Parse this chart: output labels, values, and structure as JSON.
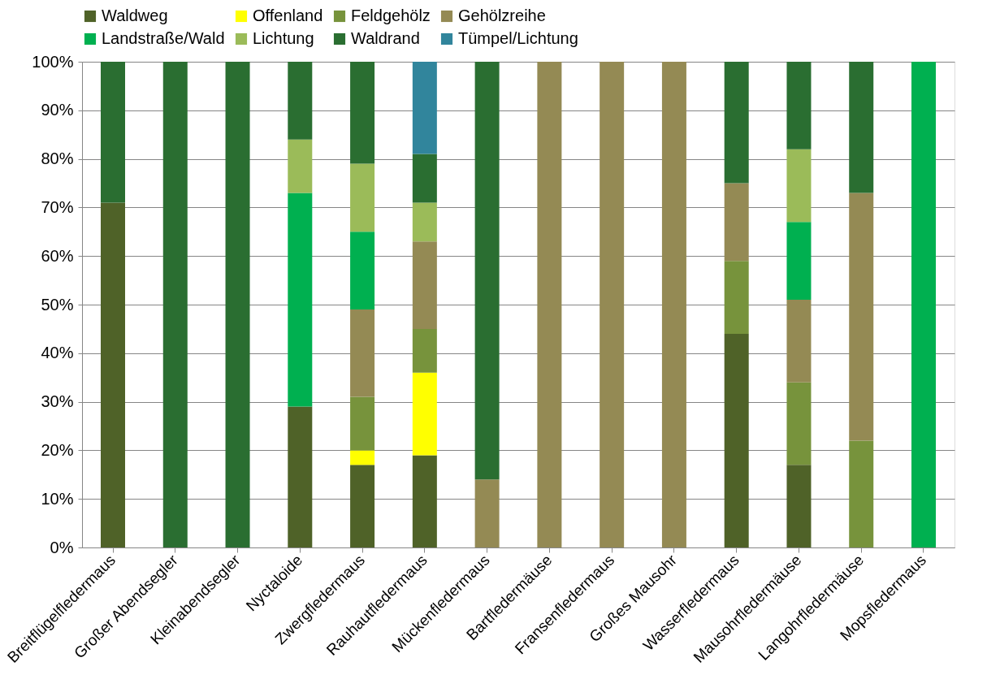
{
  "chart_data": {
    "type": "bar",
    "stacked": true,
    "categories": [
      "Breitflügelfledermaus",
      "Großer Abendsegler",
      "Kleinabendsegler",
      "Nyctaloide",
      "Zwergfledermaus",
      "Rauhautfledermaus",
      "Mückenfledermaus",
      "Bartfledermäuse",
      "Fransenfledermaus",
      "Großes Mausohr",
      "Wasserfledermaus",
      "Mausohrfledermäuse",
      "Langohrfledermäuse",
      "Mopsfledermaus"
    ],
    "series": [
      {
        "name": "Waldweg",
        "color": "#4f6228",
        "values": [
          71,
          null,
          null,
          29,
          17,
          19,
          null,
          null,
          null,
          null,
          44,
          17,
          null,
          null
        ]
      },
      {
        "name": "Offenland",
        "color": "#ffff00",
        "values": [
          null,
          null,
          null,
          null,
          3,
          17,
          null,
          null,
          null,
          null,
          null,
          null,
          null,
          null
        ]
      },
      {
        "name": "Feldgehölz",
        "color": "#77933c",
        "values": [
          null,
          null,
          null,
          null,
          11,
          9,
          null,
          null,
          null,
          null,
          15,
          17,
          22,
          null
        ]
      },
      {
        "name": "Gehölzreihe",
        "color": "#948a54",
        "values": [
          null,
          null,
          null,
          null,
          18,
          18,
          14,
          100,
          100,
          100,
          16,
          17,
          51,
          null
        ]
      },
      {
        "name": "Landstraße/Wald",
        "color": "#00b050",
        "values": [
          null,
          null,
          null,
          44,
          16,
          null,
          null,
          null,
          null,
          null,
          null,
          16,
          null,
          100
        ]
      },
      {
        "name": "Lichtung",
        "color": "#9bbb59",
        "values": [
          null,
          null,
          null,
          11,
          14,
          8,
          null,
          null,
          null,
          null,
          null,
          15,
          null,
          null
        ]
      },
      {
        "name": "Waldrand",
        "color": "#2a6e31",
        "values": [
          29,
          100,
          100,
          16,
          21,
          10,
          86,
          null,
          null,
          null,
          25,
          18,
          27,
          null
        ]
      },
      {
        "name": "Tümpel/Lichtung",
        "color": "#31859c",
        "values": [
          null,
          null,
          null,
          null,
          null,
          19,
          null,
          null,
          null,
          null,
          null,
          null,
          null,
          null
        ]
      }
    ],
    "ylim": [
      0,
      100
    ],
    "yticks": [
      {
        "value": 0,
        "label": "0%"
      },
      {
        "value": 10,
        "label": "10%"
      },
      {
        "value": 20,
        "label": "20%"
      },
      {
        "value": 30,
        "label": "30%"
      },
      {
        "value": 40,
        "label": "40%"
      },
      {
        "value": 50,
        "label": "50%"
      },
      {
        "value": 60,
        "label": "60%"
      },
      {
        "value": 70,
        "label": "70%"
      },
      {
        "value": 80,
        "label": "80%"
      },
      {
        "value": 90,
        "label": "90%"
      },
      {
        "value": 100,
        "label": "100%"
      }
    ],
    "grid": "y",
    "legend": "top"
  }
}
